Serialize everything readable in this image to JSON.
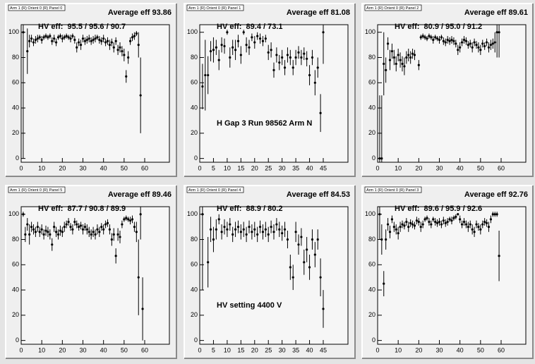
{
  "chart_data": [
    {
      "type": "scatter",
      "title": "Arm 1 (R) Orient 0 (R) Panel 0",
      "subtitle": "Average eff 93.86",
      "annotations": [
        "HV eff:  95.5 / 95.6 / 90.7"
      ],
      "color": "#000000",
      "xlim": [
        0,
        72
      ],
      "ylim": [
        -3,
        106
      ],
      "xticks": [
        0,
        10,
        20,
        30,
        40,
        50,
        60
      ],
      "yticks": [
        0,
        20,
        40,
        60,
        80,
        100
      ],
      "x": [
        1,
        3,
        4,
        5,
        6,
        7,
        8,
        9,
        10,
        11,
        12,
        13,
        14,
        15,
        16,
        17,
        18,
        19,
        20,
        21,
        22,
        23,
        24,
        25,
        26,
        27,
        28,
        29,
        30,
        31,
        32,
        33,
        34,
        35,
        36,
        37,
        38,
        39,
        40,
        41,
        42,
        43,
        44,
        45,
        46,
        47,
        48,
        49,
        50,
        51,
        52,
        53,
        54,
        55,
        56,
        57,
        58
      ],
      "values": [
        100,
        85,
        93,
        95,
        92,
        94,
        95,
        96,
        94,
        96,
        97,
        96,
        97,
        93,
        95,
        92,
        96,
        97,
        95,
        96,
        97,
        96,
        95,
        97,
        94,
        88,
        92,
        90,
        95,
        93,
        94,
        95,
        93,
        94,
        95,
        96,
        94,
        93,
        95,
        92,
        93,
        90,
        92,
        88,
        93,
        86,
        88,
        85,
        82,
        65,
        80,
        93,
        96,
        97,
        99,
        90,
        50
      ],
      "errors": [
        100,
        18,
        5,
        3,
        3,
        3,
        3,
        2,
        3,
        2,
        2,
        2,
        2,
        3,
        3,
        3,
        2,
        2,
        3,
        2,
        2,
        2,
        3,
        2,
        3,
        4,
        3,
        4,
        3,
        3,
        3,
        3,
        3,
        3,
        3,
        2,
        3,
        3,
        3,
        3,
        3,
        4,
        3,
        4,
        3,
        4,
        4,
        4,
        5,
        5,
        5,
        3,
        3,
        3,
        2,
        10,
        30
      ]
    },
    {
      "type": "scatter",
      "title": "Arm 1 (R) Orient 0 (R) Panel 1",
      "subtitle": "Average eff 81.08",
      "annotations": [
        "HV eff:  89.4 / 73.1",
        "H Gap 3 Run 98562 Arm N"
      ],
      "color": "#000000",
      "xlim": [
        0,
        54
      ],
      "ylim": [
        -3,
        106
      ],
      "xticks": [
        0,
        5,
        10,
        15,
        20,
        25,
        30,
        35,
        40,
        45
      ],
      "yticks": [
        0,
        20,
        40,
        60,
        80,
        100
      ],
      "x": [
        1,
        2,
        3,
        4,
        5,
        6,
        7,
        8,
        9,
        10,
        11,
        12,
        13,
        14,
        15,
        16,
        17,
        18,
        19,
        20,
        21,
        22,
        23,
        24,
        25,
        26,
        27,
        28,
        29,
        30,
        31,
        32,
        33,
        34,
        35,
        36,
        37,
        38,
        39,
        40,
        41,
        42,
        43,
        44,
        45
      ],
      "values": [
        57,
        66,
        66,
        85,
        86,
        88,
        78,
        90,
        89,
        100,
        80,
        88,
        86,
        93,
        82,
        100,
        90,
        88,
        96,
        92,
        97,
        95,
        93,
        95,
        84,
        86,
        70,
        82,
        76,
        80,
        72,
        82,
        80,
        72,
        80,
        84,
        80,
        83,
        79,
        66,
        80,
        60,
        72,
        36,
        100
      ],
      "errors": [
        18,
        28,
        15,
        8,
        10,
        6,
        8,
        6,
        6,
        2,
        8,
        6,
        8,
        5,
        7,
        2,
        6,
        6,
        3,
        5,
        3,
        4,
        4,
        3,
        6,
        6,
        6,
        6,
        6,
        6,
        6,
        6,
        6,
        6,
        6,
        5,
        6,
        5,
        6,
        8,
        6,
        10,
        8,
        15,
        25
      ]
    },
    {
      "type": "scatter",
      "title": "Arm 1 (R) Orient 0 (R) Panel 2",
      "subtitle": "Average eff 89.61",
      "annotations": [
        "HV eff:  80.9 / 95.0 / 91.2"
      ],
      "color": "#000000",
      "xlim": [
        0,
        72
      ],
      "ylim": [
        -3,
        106
      ],
      "xticks": [
        0,
        10,
        20,
        30,
        40,
        50,
        60
      ],
      "yticks": [
        0,
        20,
        40,
        60,
        80,
        100
      ],
      "x": [
        1,
        2,
        3,
        4,
        5,
        6,
        7,
        8,
        9,
        10,
        11,
        12,
        13,
        14,
        15,
        16,
        17,
        18,
        20,
        21,
        22,
        23,
        24,
        25,
        26,
        27,
        28,
        29,
        30,
        31,
        32,
        33,
        34,
        35,
        36,
        37,
        38,
        39,
        40,
        41,
        42,
        43,
        44,
        45,
        46,
        47,
        48,
        49,
        50,
        51,
        52,
        53,
        54,
        55,
        56,
        57,
        58,
        59
      ],
      "values": [
        0,
        0,
        75,
        70,
        91,
        78,
        85,
        80,
        75,
        82,
        78,
        75,
        73,
        80,
        82,
        80,
        83,
        82,
        74,
        96,
        97,
        96,
        95,
        97,
        96,
        94,
        96,
        95,
        94,
        96,
        93,
        92,
        94,
        93,
        94,
        93,
        91,
        86,
        88,
        92,
        94,
        93,
        90,
        91,
        88,
        92,
        90,
        88,
        86,
        91,
        89,
        92,
        88,
        90,
        91,
        92,
        100,
        100
      ],
      "errors": [
        50,
        50,
        25,
        10,
        5,
        8,
        6,
        6,
        6,
        5,
        6,
        6,
        7,
        5,
        5,
        5,
        4,
        4,
        4,
        2,
        2,
        2,
        2,
        2,
        2,
        3,
        2,
        2,
        3,
        2,
        3,
        3,
        3,
        3,
        3,
        3,
        3,
        4,
        4,
        3,
        3,
        3,
        3,
        3,
        4,
        3,
        3,
        4,
        4,
        3,
        3,
        3,
        4,
        4,
        4,
        8,
        20,
        20
      ]
    },
    {
      "type": "scatter",
      "title": "Arm 1 (R) Orient 0 (R) Panel 5",
      "subtitle": "Average eff 89.46",
      "annotations": [
        "HV eff:  87.7 / 90.8 / 89.9"
      ],
      "color": "#000000",
      "xlim": [
        0,
        72
      ],
      "ylim": [
        -3,
        106
      ],
      "xticks": [
        0,
        10,
        20,
        30,
        40,
        50,
        60
      ],
      "yticks": [
        0,
        20,
        40,
        60,
        80,
        100
      ],
      "x": [
        1,
        2,
        3,
        4,
        5,
        6,
        7,
        8,
        9,
        10,
        11,
        12,
        13,
        14,
        15,
        16,
        17,
        18,
        19,
        20,
        21,
        22,
        23,
        24,
        25,
        26,
        27,
        28,
        29,
        30,
        31,
        32,
        33,
        34,
        35,
        36,
        37,
        38,
        39,
        40,
        41,
        42,
        43,
        44,
        45,
        46,
        47,
        48,
        49,
        50,
        51,
        52,
        53,
        54,
        55,
        56,
        57,
        58,
        59
      ],
      "values": [
        100,
        84,
        92,
        84,
        90,
        88,
        86,
        90,
        86,
        88,
        84,
        87,
        86,
        84,
        76,
        90,
        86,
        84,
        87,
        86,
        90,
        92,
        94,
        90,
        88,
        94,
        92,
        90,
        91,
        88,
        90,
        88,
        86,
        84,
        86,
        84,
        88,
        86,
        90,
        88,
        92,
        93,
        88,
        80,
        84,
        67,
        84,
        82,
        92,
        96,
        97,
        96,
        95,
        96,
        90,
        86,
        50,
        100,
        25
      ],
      "errors": [
        2,
        6,
        5,
        8,
        4,
        4,
        4,
        4,
        4,
        4,
        4,
        4,
        4,
        4,
        5,
        4,
        4,
        4,
        4,
        4,
        4,
        3,
        3,
        3,
        4,
        3,
        3,
        3,
        3,
        4,
        3,
        4,
        4,
        4,
        4,
        4,
        4,
        4,
        3,
        4,
        3,
        3,
        4,
        5,
        5,
        6,
        5,
        5,
        3,
        2,
        2,
        2,
        3,
        3,
        4,
        8,
        30,
        20,
        25
      ]
    },
    {
      "type": "scatter",
      "title": "Arm 1 (R) Orient 0 (R) Panel 4",
      "subtitle": "Average eff 84.53",
      "annotations": [
        "HV eff:  88.9 / 80.2",
        "HV setting 4400 V"
      ],
      "color": "#000000",
      "xlim": [
        0,
        54
      ],
      "ylim": [
        -3,
        106
      ],
      "xticks": [
        0,
        5,
        10,
        15,
        20,
        25,
        30,
        35,
        40,
        45
      ],
      "yticks": [
        0,
        20,
        40,
        60,
        80,
        100
      ],
      "x": [
        1,
        3,
        4,
        5,
        6,
        7,
        8,
        9,
        10,
        11,
        12,
        13,
        14,
        15,
        16,
        17,
        18,
        19,
        20,
        21,
        22,
        23,
        24,
        25,
        26,
        27,
        28,
        29,
        30,
        31,
        32,
        33,
        34,
        35,
        36,
        37,
        38,
        39,
        40,
        41,
        42,
        43,
        44,
        45
      ],
      "values": [
        100,
        62,
        88,
        80,
        88,
        96,
        86,
        90,
        88,
        92,
        84,
        88,
        90,
        86,
        88,
        84,
        90,
        86,
        88,
        84,
        90,
        86,
        88,
        84,
        90,
        86,
        92,
        88,
        85,
        88,
        80,
        58,
        50,
        86,
        76,
        82,
        62,
        72,
        58,
        80,
        68,
        80,
        50,
        25
      ],
      "errors": [
        60,
        20,
        10,
        10,
        8,
        4,
        6,
        6,
        6,
        5,
        6,
        6,
        5,
        6,
        6,
        6,
        5,
        6,
        6,
        6,
        5,
        6,
        6,
        6,
        5,
        6,
        5,
        6,
        6,
        6,
        7,
        10,
        10,
        8,
        8,
        7,
        10,
        10,
        10,
        8,
        10,
        8,
        15,
        15
      ]
    },
    {
      "type": "scatter",
      "title": "Arm 1 (R) Orient 0 (R) Panel 3",
      "subtitle": "Average eff 92.76",
      "annotations": [
        "HV eff:  89.6 / 95.9 / 92.6"
      ],
      "color": "#000000",
      "xlim": [
        0,
        72
      ],
      "ylim": [
        -3,
        106
      ],
      "xticks": [
        0,
        10,
        20,
        30,
        40,
        50,
        60
      ],
      "yticks": [
        0,
        20,
        40,
        60,
        80,
        100
      ],
      "x": [
        1,
        2,
        3,
        4,
        5,
        6,
        7,
        8,
        9,
        10,
        11,
        12,
        13,
        14,
        15,
        16,
        17,
        18,
        19,
        20,
        21,
        22,
        23,
        24,
        25,
        26,
        27,
        28,
        29,
        30,
        31,
        32,
        33,
        34,
        35,
        36,
        37,
        38,
        39,
        40,
        41,
        42,
        43,
        44,
        45,
        46,
        47,
        48,
        49,
        50,
        51,
        52,
        53,
        54,
        55,
        56,
        57,
        58,
        59
      ],
      "values": [
        100,
        80,
        45,
        80,
        92,
        86,
        96,
        90,
        88,
        85,
        90,
        92,
        91,
        94,
        90,
        93,
        92,
        91,
        95,
        94,
        90,
        92,
        96,
        97,
        94,
        92,
        96,
        94,
        93,
        94,
        92,
        95,
        93,
        94,
        96,
        95,
        97,
        98,
        100,
        96,
        92,
        94,
        92,
        90,
        92,
        88,
        86,
        92,
        90,
        88,
        92,
        94,
        93,
        90,
        96,
        100,
        100,
        100,
        67
      ],
      "errors": [
        20,
        12,
        10,
        8,
        5,
        5,
        3,
        4,
        4,
        5,
        4,
        3,
        3,
        3,
        4,
        3,
        3,
        3,
        3,
        3,
        4,
        3,
        2,
        2,
        3,
        3,
        2,
        3,
        3,
        3,
        3,
        3,
        3,
        3,
        2,
        3,
        2,
        2,
        1,
        3,
        3,
        3,
        3,
        4,
        3,
        4,
        4,
        3,
        3,
        4,
        3,
        3,
        3,
        4,
        3,
        2,
        2,
        2,
        20
      ]
    }
  ]
}
